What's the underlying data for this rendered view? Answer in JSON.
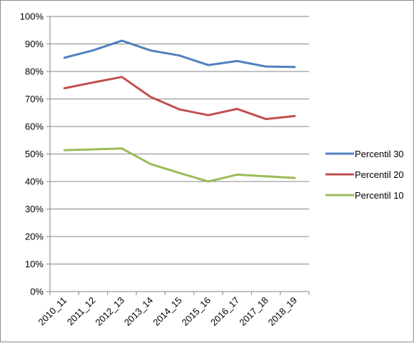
{
  "chart_data": {
    "type": "line",
    "categories": [
      "2010_11",
      "2011_12",
      "2012_13",
      "2013_14",
      "2014_15",
      "2015_16",
      "2016_17",
      "2017_18",
      "2018_19"
    ],
    "series": [
      {
        "name": "Percentil 30",
        "color": "#4F81BD",
        "values": [
          0.85,
          0.877,
          0.912,
          0.876,
          0.858,
          0.823,
          0.838,
          0.818,
          0.816
        ]
      },
      {
        "name": "Percentil 20",
        "color": "#C0504D",
        "values": [
          0.739,
          0.76,
          0.78,
          0.707,
          0.662,
          0.641,
          0.664,
          0.627,
          0.638
        ]
      },
      {
        "name": "Percentil 10",
        "color": "#9BBB59",
        "values": [
          0.514,
          0.517,
          0.52,
          0.463,
          0.431,
          0.4,
          0.425,
          0.419,
          0.413
        ]
      }
    ],
    "y_ticks": [
      "0%",
      "10%",
      "20%",
      "30%",
      "40%",
      "50%",
      "60%",
      "70%",
      "80%",
      "90%",
      "100%"
    ],
    "ylim": [
      0,
      1
    ],
    "grid": true,
    "legend_position": "right",
    "title": "",
    "xlabel": "",
    "ylabel": ""
  }
}
